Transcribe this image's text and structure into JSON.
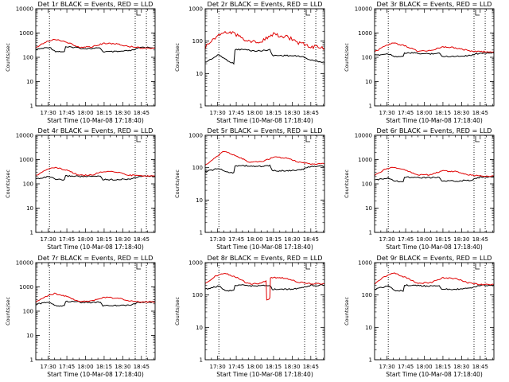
{
  "figure": {
    "xlabel": "Start Time (10-Mar-08 17:18:40)",
    "ylabel": "Counts/sec",
    "series_legend": "BLACK = Events, RED = LLD",
    "colors": {
      "events": "#000000",
      "lld": "#e00000",
      "marker": "#000000"
    }
  },
  "chart_data": [
    {
      "type": "line",
      "title": "Det 1r BLACK = Events, RED = LLD",
      "xlabel": "Start Time (10-Mar-08 17:18:40)",
      "ylabel": "Counts/sec",
      "yscale": "log",
      "ylim": [
        1,
        10000
      ],
      "yticks": [
        "1",
        "10",
        "100",
        "1000",
        "10000"
      ],
      "xlim": [
        "17:20",
        "18:56"
      ],
      "xticks": [
        "17:30",
        "17:45",
        "18:00",
        "18:15",
        "18:30",
        "18:45"
      ],
      "marker_times": [
        "17:31",
        "18:40",
        "18:49"
      ],
      "series": [
        {
          "name": "Events",
          "color": "#000000",
          "x": [
            "17:20",
            "17:31",
            "17:36",
            "17:43",
            "17:44",
            "17:52",
            "17:58",
            "18:05",
            "18:12",
            "18:14",
            "18:25",
            "18:37",
            "18:45",
            "18:56"
          ],
          "values": [
            210,
            260,
            175,
            170,
            260,
            260,
            230,
            230,
            240,
            170,
            170,
            190,
            260,
            250
          ]
        },
        {
          "name": "LLD",
          "color": "#e00000",
          "x": [
            "17:20",
            "17:28",
            "17:35",
            "17:45",
            "17:55",
            "18:05",
            "18:15",
            "18:25",
            "18:35",
            "18:45",
            "18:56"
          ],
          "values": [
            260,
            420,
            560,
            420,
            260,
            270,
            380,
            360,
            280,
            240,
            240
          ]
        }
      ]
    },
    {
      "type": "line",
      "title": "Det 2r BLACK = Events, RED = LLD",
      "xlabel": "Start Time (10-Mar-08 17:18:40)",
      "ylabel": "Counts/sec",
      "yscale": "log",
      "ylim": [
        1,
        1000
      ],
      "yticks": [
        "1",
        "10",
        "100",
        "1000"
      ],
      "xlim": [
        "17:20",
        "18:56"
      ],
      "xticks": [
        "17:30",
        "17:45",
        "18:00",
        "18:15",
        "18:30",
        "18:45"
      ],
      "marker_times": [
        "17:31",
        "18:40",
        "18:49"
      ],
      "series": [
        {
          "name": "Events",
          "color": "#000000",
          "x": [
            "17:20",
            "17:31",
            "17:36",
            "17:43",
            "17:44",
            "17:52",
            "17:58",
            "18:05",
            "18:12",
            "18:14",
            "18:25",
            "18:37",
            "18:45",
            "18:56"
          ],
          "values": [
            22,
            38,
            28,
            20,
            55,
            55,
            50,
            50,
            55,
            36,
            36,
            34,
            26,
            22
          ]
        },
        {
          "name": "LLD",
          "color": "#e00000",
          "x": [
            "17:20",
            "17:25",
            "17:35",
            "17:45",
            "17:55",
            "18:05",
            "18:15",
            "18:25",
            "18:35",
            "18:45",
            "18:56"
          ],
          "values": [
            60,
            110,
            200,
            160,
            100,
            100,
            160,
            140,
            90,
            70,
            60
          ]
        }
      ]
    },
    {
      "type": "line",
      "title": "Det 3r BLACK = Events, RED = LLD",
      "xlabel": "Start Time (10-Mar-08 17:18:40)",
      "ylabel": "Counts/sec",
      "yscale": "log",
      "ylim": [
        1,
        10000
      ],
      "yticks": [
        "1",
        "10",
        "100",
        "1000",
        "10000"
      ],
      "xlim": [
        "17:20",
        "18:56"
      ],
      "xticks": [
        "17:30",
        "17:45",
        "18:00",
        "18:15",
        "18:30",
        "18:45"
      ],
      "marker_times": [
        "17:31",
        "18:40",
        "18:49"
      ],
      "series": [
        {
          "name": "Events",
          "color": "#000000",
          "x": [
            "17:20",
            "17:31",
            "17:36",
            "17:43",
            "17:44",
            "17:52",
            "17:58",
            "18:05",
            "18:12",
            "18:14",
            "18:25",
            "18:37",
            "18:45",
            "18:56"
          ],
          "values": [
            120,
            140,
            110,
            105,
            150,
            150,
            140,
            140,
            150,
            110,
            110,
            120,
            150,
            150
          ]
        },
        {
          "name": "LLD",
          "color": "#e00000",
          "x": [
            "17:20",
            "17:28",
            "17:35",
            "17:45",
            "17:55",
            "18:05",
            "18:15",
            "18:25",
            "18:35",
            "18:45",
            "18:56"
          ],
          "values": [
            170,
            280,
            390,
            290,
            180,
            190,
            270,
            250,
            190,
            170,
            170
          ]
        }
      ]
    },
    {
      "type": "line",
      "title": "Det 4r BLACK = Events, RED = LLD",
      "xlabel": "Start Time (10-Mar-08 17:18:40)",
      "ylabel": "Counts/sec",
      "yscale": "log",
      "ylim": [
        1,
        10000
      ],
      "yticks": [
        "1",
        "10",
        "100",
        "1000",
        "10000"
      ],
      "xlim": [
        "17:20",
        "18:56"
      ],
      "xticks": [
        "17:30",
        "17:45",
        "18:00",
        "18:15",
        "18:30",
        "18:45"
      ],
      "marker_times": [
        "17:31",
        "18:40",
        "18:49"
      ],
      "series": [
        {
          "name": "Events",
          "color": "#000000",
          "x": [
            "17:20",
            "17:31",
            "17:36",
            "17:43",
            "17:44",
            "17:52",
            "17:58",
            "18:05",
            "18:12",
            "18:14",
            "18:25",
            "18:37",
            "18:45",
            "18:56"
          ],
          "values": [
            160,
            200,
            150,
            145,
            210,
            210,
            200,
            200,
            210,
            150,
            150,
            160,
            210,
            205
          ]
        },
        {
          "name": "LLD",
          "color": "#e00000",
          "x": [
            "17:20",
            "17:28",
            "17:35",
            "17:45",
            "17:55",
            "18:05",
            "18:15",
            "18:25",
            "18:35",
            "18:45",
            "18:56"
          ],
          "values": [
            220,
            360,
            480,
            360,
            220,
            230,
            330,
            310,
            230,
            210,
            210
          ]
        }
      ]
    },
    {
      "type": "line",
      "title": "Det 5r BLACK = Events, RED = LLD",
      "xlabel": "Start Time (10-Mar-08 17:18:40)",
      "ylabel": "Counts/sec",
      "yscale": "log",
      "ylim": [
        1,
        1000
      ],
      "yticks": [
        "1",
        "10",
        "100",
        "1000"
      ],
      "xlim": [
        "17:20",
        "18:56"
      ],
      "xticks": [
        "17:30",
        "17:45",
        "18:00",
        "18:15",
        "18:30",
        "18:45"
      ],
      "marker_times": [
        "17:31",
        "18:40",
        "18:49"
      ],
      "series": [
        {
          "name": "Events",
          "color": "#000000",
          "x": [
            "17:20",
            "17:31",
            "17:36",
            "17:43",
            "17:44",
            "17:52",
            "17:58",
            "18:05",
            "18:12",
            "18:14",
            "18:25",
            "18:37",
            "18:45",
            "18:56"
          ],
          "values": [
            75,
            95,
            75,
            70,
            115,
            115,
            110,
            110,
            115,
            80,
            80,
            85,
            110,
            110
          ]
        },
        {
          "name": "LLD",
          "color": "#e00000",
          "x": [
            "17:20",
            "17:28",
            "17:35",
            "17:45",
            "17:55",
            "18:05",
            "18:15",
            "18:25",
            "18:35",
            "18:45",
            "18:56"
          ],
          "values": [
            120,
            200,
            320,
            230,
            150,
            150,
            210,
            200,
            150,
            130,
            130
          ]
        }
      ]
    },
    {
      "type": "line",
      "title": "Det 6r BLACK = Events, RED = LLD",
      "xlabel": "Start Time (10-Mar-08 17:18:40)",
      "ylabel": "Counts/sec",
      "yscale": "log",
      "ylim": [
        1,
        10000
      ],
      "yticks": [
        "1",
        "10",
        "100",
        "1000",
        "10000"
      ],
      "xlim": [
        "17:20",
        "18:56"
      ],
      "xticks": [
        "17:30",
        "17:45",
        "18:00",
        "18:15",
        "18:30",
        "18:45"
      ],
      "marker_times": [
        "17:31",
        "18:40",
        "18:49"
      ],
      "series": [
        {
          "name": "Events",
          "color": "#000000",
          "x": [
            "17:20",
            "17:31",
            "17:36",
            "17:43",
            "17:44",
            "17:52",
            "17:58",
            "18:05",
            "18:12",
            "18:14",
            "18:25",
            "18:37",
            "18:45",
            "18:56"
          ],
          "values": [
            140,
            180,
            130,
            125,
            190,
            190,
            180,
            180,
            190,
            130,
            130,
            140,
            190,
            190
          ]
        },
        {
          "name": "LLD",
          "color": "#e00000",
          "x": [
            "17:20",
            "17:28",
            "17:35",
            "17:45",
            "17:55",
            "18:05",
            "18:15",
            "18:25",
            "18:35",
            "18:45",
            "18:56"
          ],
          "values": [
            220,
            380,
            500,
            370,
            230,
            240,
            340,
            320,
            240,
            210,
            210
          ]
        }
      ]
    },
    {
      "type": "line",
      "title": "Det 7r BLACK = Events, RED = LLD",
      "xlabel": "Start Time (10-Mar-08 17:18:40)",
      "ylabel": "Counts/sec",
      "yscale": "log",
      "ylim": [
        1,
        10000
      ],
      "yticks": [
        "1",
        "10",
        "100",
        "1000",
        "10000"
      ],
      "xlim": [
        "17:20",
        "18:56"
      ],
      "xticks": [
        "17:30",
        "17:45",
        "18:00",
        "18:15",
        "18:30",
        "18:45"
      ],
      "marker_times": [
        "17:31",
        "18:40",
        "18:49"
      ],
      "series": [
        {
          "name": "Events",
          "color": "#000000",
          "x": [
            "17:20",
            "17:31",
            "17:36",
            "17:43",
            "17:44",
            "17:52",
            "17:58",
            "18:05",
            "18:12",
            "18:14",
            "18:25",
            "18:37",
            "18:45",
            "18:56"
          ],
          "values": [
            190,
            240,
            170,
            165,
            250,
            250,
            230,
            230,
            240,
            170,
            170,
            180,
            240,
            240
          ]
        },
        {
          "name": "LLD",
          "color": "#e00000",
          "x": [
            "17:20",
            "17:28",
            "17:35",
            "17:45",
            "17:55",
            "18:05",
            "18:15",
            "18:25",
            "18:35",
            "18:45",
            "18:56"
          ],
          "values": [
            240,
            400,
            540,
            400,
            250,
            260,
            370,
            350,
            270,
            240,
            240
          ]
        }
      ]
    },
    {
      "type": "line",
      "title": "Det 8r BLACK = Events, RED = LLD",
      "xlabel": "Start Time (10-Mar-08 17:18:40)",
      "ylabel": "Counts/sec",
      "yscale": "log",
      "ylim": [
        1,
        1000
      ],
      "yticks": [
        "1",
        "10",
        "100",
        "1000"
      ],
      "xlim": [
        "17:20",
        "18:56"
      ],
      "xticks": [
        "17:30",
        "17:45",
        "18:00",
        "18:15",
        "18:30",
        "18:45"
      ],
      "marker_times": [
        "17:31",
        "18:40",
        "18:49"
      ],
      "series": [
        {
          "name": "Events",
          "color": "#000000",
          "x": [
            "17:20",
            "17:31",
            "17:36",
            "17:43",
            "17:44",
            "17:52",
            "17:58",
            "18:05",
            "18:12",
            "18:14",
            "18:25",
            "18:37",
            "18:45",
            "18:56"
          ],
          "values": [
            150,
            190,
            140,
            135,
            200,
            200,
            190,
            190,
            200,
            150,
            150,
            160,
            200,
            200
          ]
        },
        {
          "name": "LLD",
          "color": "#e00000",
          "x": [
            "17:20",
            "17:28",
            "17:35",
            "17:45",
            "17:55",
            "18:05",
            "18:09",
            "18:09.5",
            "18:12",
            "18:12.5",
            "18:15",
            "18:25",
            "18:35",
            "18:45",
            "18:56"
          ],
          "values": [
            230,
            380,
            480,
            350,
            220,
            230,
            280,
            70,
            80,
            340,
            350,
            330,
            250,
            220,
            220
          ]
        }
      ]
    },
    {
      "type": "line",
      "title": "Det 9r BLACK = Events, RED = LLD",
      "xlabel": "Start Time (10-Mar-08 17:18:40)",
      "ylabel": "Counts/sec",
      "yscale": "log",
      "ylim": [
        1,
        1000
      ],
      "yticks": [
        "1",
        "10",
        "100",
        "1000"
      ],
      "xlim": [
        "17:20",
        "18:56"
      ],
      "xticks": [
        "17:30",
        "17:45",
        "18:00",
        "18:15",
        "18:30",
        "18:45"
      ],
      "marker_times": [
        "17:31",
        "18:40",
        "18:49"
      ],
      "series": [
        {
          "name": "Events",
          "color": "#000000",
          "x": [
            "17:20",
            "17:31",
            "17:36",
            "17:43",
            "17:44",
            "17:52",
            "17:58",
            "18:05",
            "18:12",
            "18:14",
            "18:25",
            "18:37",
            "18:45",
            "18:56"
          ],
          "values": [
            150,
            190,
            140,
            135,
            200,
            200,
            190,
            190,
            200,
            150,
            150,
            160,
            200,
            200
          ]
        },
        {
          "name": "LLD",
          "color": "#e00000",
          "x": [
            "17:20",
            "17:28",
            "17:35",
            "17:45",
            "17:55",
            "18:05",
            "18:15",
            "18:25",
            "18:35",
            "18:45",
            "18:56"
          ],
          "values": [
            220,
            370,
            480,
            350,
            230,
            240,
            340,
            320,
            240,
            210,
            210
          ]
        }
      ]
    }
  ]
}
